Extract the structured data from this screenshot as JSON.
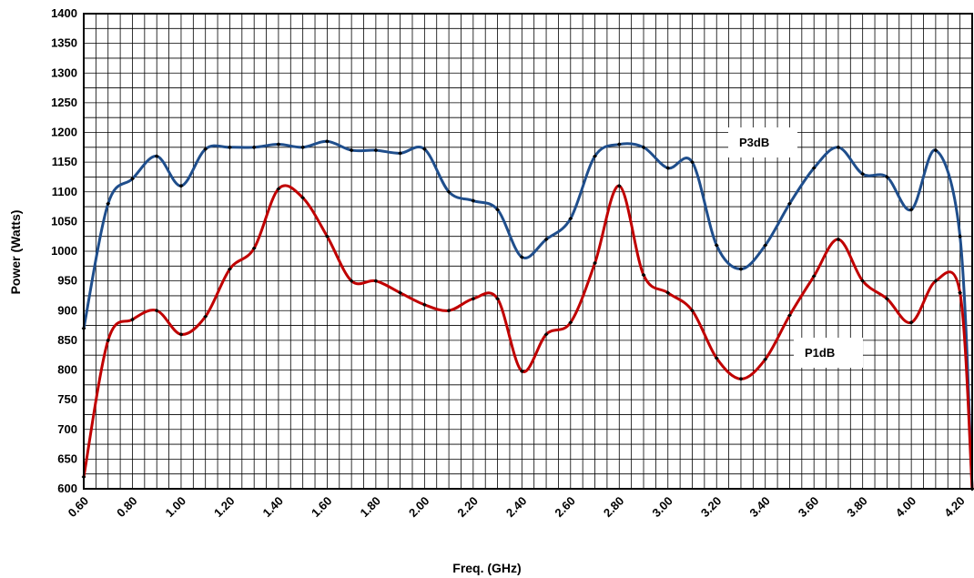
{
  "chart_data": {
    "type": "line",
    "title": "",
    "xlabel": "Freq. (GHz)",
    "ylabel": "Power (Watts)",
    "xlim": [
      0.6,
      4.25
    ],
    "ylim": [
      600,
      1400
    ],
    "x_ticks": [
      "0.60",
      "0.80",
      "1.00",
      "1.20",
      "1.40",
      "1.60",
      "1.80",
      "2.00",
      "2.20",
      "2.40",
      "2.60",
      "2.80",
      "3.00",
      "3.20",
      "3.40",
      "3.60",
      "3.80",
      "4.00",
      "4.20"
    ],
    "y_ticks": [
      "600",
      "650",
      "700",
      "750",
      "800",
      "850",
      "900",
      "950",
      "1000",
      "1050",
      "1100",
      "1150",
      "1200",
      "1250",
      "1300",
      "1350",
      "1400"
    ],
    "grid": true,
    "legend": "none",
    "x": [
      0.6,
      0.7,
      0.8,
      0.9,
      1.0,
      1.1,
      1.2,
      1.3,
      1.4,
      1.5,
      1.6,
      1.7,
      1.8,
      1.9,
      2.0,
      2.1,
      2.2,
      2.3,
      2.4,
      2.5,
      2.6,
      2.7,
      2.8,
      2.9,
      3.0,
      3.1,
      3.2,
      3.3,
      3.4,
      3.5,
      3.6,
      3.7,
      3.8,
      3.9,
      4.0,
      4.1,
      4.2,
      4.25
    ],
    "series": [
      {
        "name": "P3dB",
        "color": "#1f4e8c",
        "values": [
          870,
          1080,
          1122,
          1160,
          1110,
          1172,
          1175,
          1175,
          1180,
          1175,
          1185,
          1170,
          1170,
          1165,
          1172,
          1100,
          1085,
          1070,
          990,
          1020,
          1055,
          1160,
          1180,
          1175,
          1140,
          1150,
          1010,
          970,
          1010,
          1080,
          1140,
          1175,
          1130,
          1125,
          1070,
          1170,
          1025,
          600
        ]
      },
      {
        "name": "P1dB",
        "color": "#c00000",
        "values": [
          620,
          850,
          885,
          900,
          860,
          890,
          970,
          1005,
          1105,
          1090,
          1025,
          950,
          950,
          930,
          910,
          900,
          920,
          920,
          798,
          860,
          880,
          980,
          1110,
          960,
          930,
          900,
          820,
          785,
          818,
          892,
          958,
          1020,
          950,
          920,
          880,
          950,
          930,
          600
        ]
      }
    ],
    "annotations": [
      {
        "text": "P3dB",
        "series": "P3dB"
      },
      {
        "text": "P1dB",
        "series": "P1dB"
      }
    ]
  }
}
